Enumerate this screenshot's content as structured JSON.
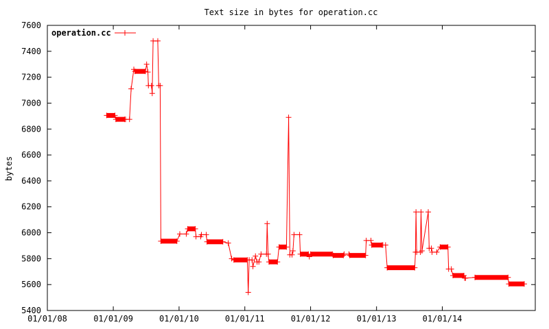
{
  "chart_data": {
    "type": "line",
    "title": "Text size in bytes for operation.cc",
    "xlabel": "",
    "ylabel": "bytes",
    "ylim": [
      5400,
      7600
    ],
    "yticks": [
      5400,
      5600,
      5800,
      6000,
      6200,
      6400,
      6600,
      6800,
      7000,
      7200,
      7400,
      7600
    ],
    "xlim": [
      "2008-01-01",
      "2015-06-01"
    ],
    "xticks": [
      {
        "date": "2008-01-01",
        "label": "01/01/08"
      },
      {
        "date": "2009-01-01",
        "label": "01/01/09"
      },
      {
        "date": "2010-01-01",
        "label": "01/01/10"
      },
      {
        "date": "2011-01-01",
        "label": "01/01/11"
      },
      {
        "date": "2012-01-01",
        "label": "01/01/12"
      },
      {
        "date": "2013-01-01",
        "label": "01/01/13"
      },
      {
        "date": "2014-01-01",
        "label": "01/01/14"
      }
    ],
    "grid": false,
    "legend": "top-left",
    "color": "#ff0000",
    "series": [
      {
        "name": "operation.cc",
        "points": [
          [
            "2008-11-25",
            6905
          ],
          [
            "2009-01-10",
            6905
          ],
          [
            "2009-01-15",
            6875
          ],
          [
            "2009-03-05",
            6875
          ],
          [
            "2009-03-10",
            6875
          ],
          [
            "2009-04-01",
            6875
          ],
          [
            "2009-04-10",
            7110
          ],
          [
            "2009-04-25",
            7260
          ],
          [
            "2009-05-01",
            7245
          ],
          [
            "2009-06-28",
            7245
          ],
          [
            "2009-07-05",
            7300
          ],
          [
            "2009-07-12",
            7240
          ],
          [
            "2009-07-15",
            7135
          ],
          [
            "2009-08-01",
            7135
          ],
          [
            "2009-08-05",
            7075
          ],
          [
            "2009-08-10",
            7480
          ],
          [
            "2009-09-05",
            7480
          ],
          [
            "2009-09-10",
            7135
          ],
          [
            "2009-09-18",
            7135
          ],
          [
            "2009-09-22",
            5935
          ],
          [
            "2009-12-20",
            5935
          ],
          [
            "2010-01-05",
            5990
          ],
          [
            "2010-02-10",
            5990
          ],
          [
            "2010-02-18",
            6030
          ],
          [
            "2010-04-01",
            6030
          ],
          [
            "2010-04-05",
            5970
          ],
          [
            "2010-05-01",
            5970
          ],
          [
            "2010-05-05",
            5985
          ],
          [
            "2010-06-01",
            5985
          ],
          [
            "2010-06-05",
            5930
          ],
          [
            "2010-09-01",
            5930
          ],
          [
            "2010-10-01",
            5920
          ],
          [
            "2010-10-20",
            5800
          ],
          [
            "2010-11-01",
            5790
          ],
          [
            "2011-01-15",
            5790
          ],
          [
            "2011-01-20",
            5540
          ],
          [
            "2011-01-25",
            5790
          ],
          [
            "2011-02-10",
            5790
          ],
          [
            "2011-02-15",
            5740
          ],
          [
            "2011-03-01",
            5820
          ],
          [
            "2011-03-10",
            5775
          ],
          [
            "2011-03-20",
            5775
          ],
          [
            "2011-04-01",
            5835
          ],
          [
            "2011-05-01",
            5835
          ],
          [
            "2011-05-05",
            6070
          ],
          [
            "2011-05-10",
            5835
          ],
          [
            "2011-05-15",
            5775
          ],
          [
            "2011-07-01",
            5775
          ],
          [
            "2011-07-10",
            5890
          ],
          [
            "2011-08-20",
            5890
          ],
          [
            "2011-09-01",
            6890
          ],
          [
            "2011-09-08",
            5830
          ],
          [
            "2011-09-20",
            5830
          ],
          [
            "2011-09-25",
            5860
          ],
          [
            "2011-10-01",
            5985
          ],
          [
            "2011-11-01",
            5985
          ],
          [
            "2011-11-05",
            5835
          ],
          [
            "2011-12-20",
            5835
          ],
          [
            "2011-12-25",
            5815
          ],
          [
            "2012-01-01",
            5835
          ],
          [
            "2012-05-01",
            5835
          ],
          [
            "2012-05-05",
            5825
          ],
          [
            "2012-07-01",
            5825
          ],
          [
            "2012-07-05",
            5835
          ],
          [
            "2012-08-01",
            5835
          ],
          [
            "2012-08-05",
            5825
          ],
          [
            "2012-11-01",
            5825
          ],
          [
            "2012-11-05",
            5940
          ],
          [
            "2012-12-01",
            5940
          ],
          [
            "2012-12-05",
            5905
          ],
          [
            "2013-02-01",
            5905
          ],
          [
            "2013-02-05",
            5905
          ],
          [
            "2013-02-20",
            5905
          ],
          [
            "2013-03-01",
            5730
          ],
          [
            "2013-08-01",
            5730
          ],
          [
            "2013-08-05",
            5850
          ],
          [
            "2013-08-08",
            6160
          ],
          [
            "2013-08-12",
            5850
          ],
          [
            "2013-09-01",
            5850
          ],
          [
            "2013-09-05",
            6160
          ],
          [
            "2013-09-10",
            5860
          ],
          [
            "2013-10-15",
            6160
          ],
          [
            "2013-10-20",
            5880
          ],
          [
            "2013-11-01",
            5880
          ],
          [
            "2013-11-05",
            5850
          ],
          [
            "2013-12-01",
            5850
          ],
          [
            "2013-12-20",
            5890
          ],
          [
            "2014-02-01",
            5890
          ],
          [
            "2014-02-05",
            5720
          ],
          [
            "2014-02-20",
            5720
          ],
          [
            "2014-03-01",
            5670
          ],
          [
            "2014-05-01",
            5670
          ],
          [
            "2014-05-05",
            5650
          ],
          [
            "2014-05-10",
            5650
          ],
          [
            "2014-07-01",
            5655
          ],
          [
            "2015-01-01",
            5655
          ],
          [
            "2015-01-05",
            5605
          ],
          [
            "2015-04-01",
            5605
          ]
        ]
      }
    ]
  }
}
